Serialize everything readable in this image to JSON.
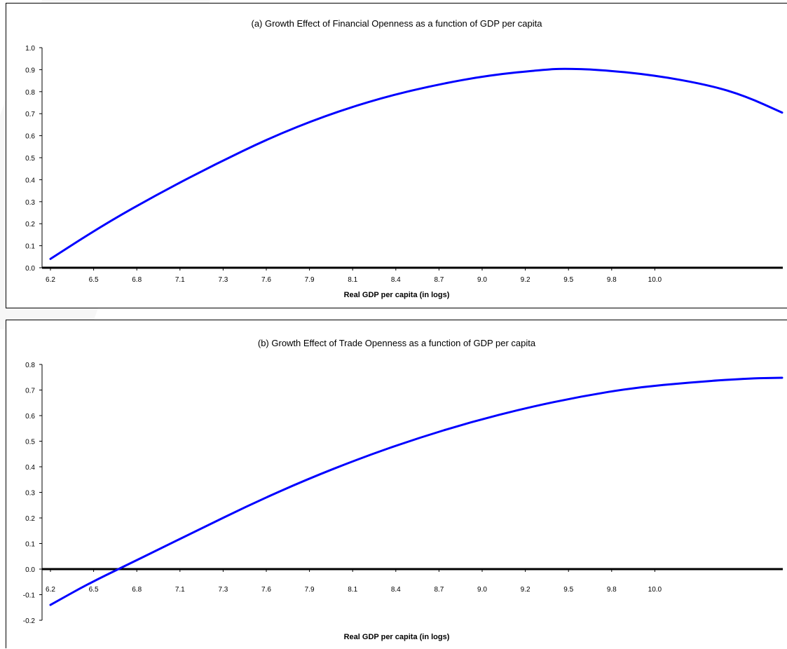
{
  "chart_data": [
    {
      "type": "line",
      "title": "(a) Growth Effect of Financial Openness as a function of GDP per capita",
      "xlabel": "Real GDP per capita (in logs)",
      "ylabel": "",
      "x_tick_labels": [
        "6.2",
        "6.5",
        "6.8",
        "7.1",
        "7.3",
        "7.6",
        "7.9",
        "8.1",
        "8.4",
        "8.7",
        "9.0",
        "9.2",
        "9.5",
        "9.8",
        "10.0"
      ],
      "y_tick_labels": [
        "0.0",
        "0.1",
        "0.2",
        "0.3",
        "0.4",
        "0.5",
        "0.6",
        "0.7",
        "0.8",
        "0.9",
        "1.0"
      ],
      "xlim": [
        6.2,
        10.2
      ],
      "ylim": [
        0,
        1.0
      ],
      "grid": false,
      "line_color": "#0000ff",
      "series": [
        {
          "x": [
            6.2,
            6.5,
            6.8,
            7.1,
            7.4,
            7.7,
            8.0,
            8.3,
            8.6,
            8.9,
            9.0,
            9.2,
            9.5,
            9.8,
            10.0,
            10.2
          ],
          "values": [
            0.04,
            0.2,
            0.34,
            0.47,
            0.59,
            0.69,
            0.77,
            0.83,
            0.875,
            0.9,
            0.905,
            0.9,
            0.875,
            0.83,
            0.78,
            0.705
          ]
        }
      ]
    },
    {
      "type": "line",
      "title": "(b) Growth Effect of Trade Openness as a function of GDP per capita",
      "xlabel": "Real GDP per capita (in logs)",
      "ylabel": "",
      "x_tick_labels": [
        "6.2",
        "6.5",
        "6.8",
        "7.1",
        "7.3",
        "7.6",
        "7.9",
        "8.1",
        "8.4",
        "8.7",
        "9.0",
        "9.2",
        "9.5",
        "9.8",
        "10.0"
      ],
      "y_tick_labels": [
        "-0.2",
        "-0.1",
        "0.0",
        "0.1",
        "0.2",
        "0.3",
        "0.4",
        "0.5",
        "0.6",
        "0.7",
        "0.8"
      ],
      "xlim": [
        6.2,
        10.2
      ],
      "ylim": [
        -0.2,
        0.8
      ],
      "grid": false,
      "line_color": "#0000ff",
      "series": [
        {
          "x": [
            6.2,
            6.4,
            6.6,
            6.8,
            7.0,
            7.3,
            7.6,
            7.9,
            8.2,
            8.5,
            8.8,
            9.1,
            9.4,
            9.7,
            10.0,
            10.2
          ],
          "values": [
            -0.14,
            -0.06,
            0.01,
            0.08,
            0.15,
            0.255,
            0.35,
            0.435,
            0.51,
            0.575,
            0.63,
            0.675,
            0.71,
            0.73,
            0.745,
            0.748
          ]
        }
      ]
    }
  ]
}
